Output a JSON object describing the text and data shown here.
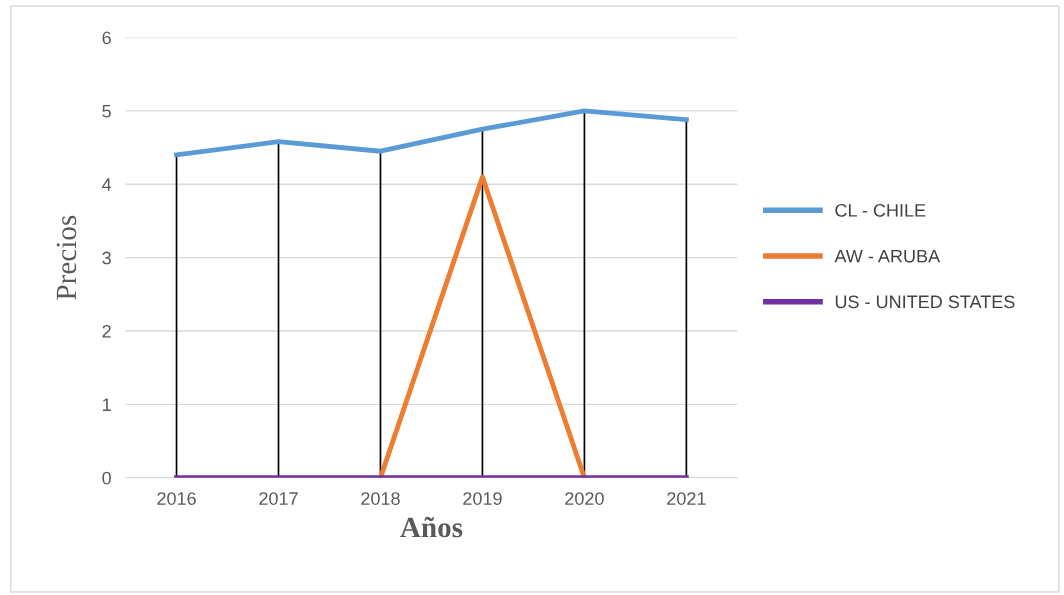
{
  "chart_data": {
    "type": "line",
    "xlabel": "Años",
    "ylabel": "Precios",
    "categories": [
      "2016",
      "2017",
      "2018",
      "2019",
      "2020",
      "2021"
    ],
    "series": [
      {
        "name": "CL - CHILE",
        "color": "#5b9bd5",
        "values": [
          4.4,
          4.58,
          4.45,
          4.75,
          5.0,
          4.88
        ]
      },
      {
        "name": "AW - ARUBA",
        "color": "#ed7d31",
        "values": [
          null,
          null,
          0,
          4.1,
          0,
          null
        ]
      },
      {
        "name": "US - UNITED STATES",
        "color": "#7030a0",
        "values": [
          0,
          0,
          0,
          0,
          0,
          0
        ]
      }
    ],
    "ylim": [
      0,
      6
    ],
    "yticks": [
      0,
      1,
      2,
      3,
      4,
      5,
      6
    ],
    "grid": "y",
    "legend": "right",
    "ref_lines": [
      {
        "axis": "x",
        "value": "2016",
        "color": "#000000"
      },
      {
        "axis": "x",
        "value": "2017",
        "color": "#000000"
      },
      {
        "axis": "x",
        "value": "2018",
        "color": "#000000"
      },
      {
        "axis": "x",
        "value": "2019",
        "color": "#000000"
      },
      {
        "axis": "x",
        "value": "2020",
        "color": "#000000"
      },
      {
        "axis": "x",
        "value": "2021",
        "color": "#000000"
      }
    ]
  }
}
